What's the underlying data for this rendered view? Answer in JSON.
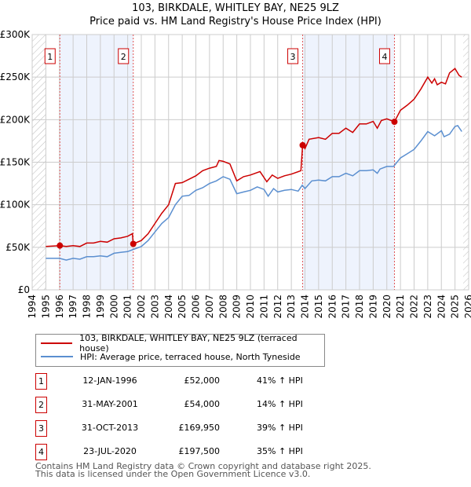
{
  "chart_data": {
    "type": "line",
    "title": "103, BIRKDALE, WHITLEY BAY, NE25 9LZ",
    "subtitle": "Price paid vs. HM Land Registry's House Price Index (HPI)",
    "xlabel": "",
    "ylabel": "",
    "xlim": [
      1994,
      2026
    ],
    "ylim": [
      0,
      300000
    ],
    "x_ticks": [
      "1994",
      "1995",
      "1996",
      "1997",
      "1998",
      "1999",
      "2000",
      "2001",
      "2002",
      "2003",
      "2004",
      "2005",
      "2006",
      "2007",
      "2008",
      "2009",
      "2010",
      "2011",
      "2012",
      "2013",
      "2014",
      "2015",
      "2016",
      "2017",
      "2018",
      "2019",
      "2020",
      "2021",
      "2022",
      "2023",
      "2024",
      "2025",
      "2026"
    ],
    "y_ticks": [
      {
        "v": 0,
        "label": "£0"
      },
      {
        "v": 50000,
        "label": "£50K"
      },
      {
        "v": 100000,
        "label": "£100K"
      },
      {
        "v": 150000,
        "label": "£150K"
      },
      {
        "v": 200000,
        "label": "£200K"
      },
      {
        "v": 250000,
        "label": "£250K"
      },
      {
        "v": 300000,
        "label": "£300K"
      }
    ],
    "grid": true,
    "series": [
      {
        "name": "103, BIRKDALE, WHITLEY BAY, NE25 9LZ (terraced house)",
        "color": "#cc0000",
        "x": [
          1995,
          1996.03,
          1996.5,
          1997,
          1997.5,
          1998,
          1998.5,
          1999,
          1999.5,
          2000,
          2000.5,
          2001,
          2001.35,
          2001.41,
          2002,
          2002.5,
          2003,
          2003.5,
          2004,
          2004.5,
          2005,
          2005.5,
          2006,
          2006.5,
          2007,
          2007.5,
          2007.7,
          2008,
          2008.5,
          2009,
          2009.5,
          2010,
          2010.7,
          2011.2,
          2011.6,
          2012,
          2012.5,
          2013,
          2013.7,
          2013.83,
          2014,
          2014.3,
          2015,
          2015.5,
          2016,
          2016.5,
          2017,
          2017.5,
          2018,
          2018.5,
          2019,
          2019.3,
          2019.6,
          2020,
          2020.56,
          2021,
          2021.5,
          2022,
          2022.5,
          2023,
          2023.3,
          2023.5,
          2023.7,
          2024,
          2024.3,
          2024.6,
          2025,
          2025.3,
          2025.5
        ],
        "y": [
          51000,
          52000,
          51000,
          52000,
          51000,
          55000,
          55000,
          57000,
          56000,
          60000,
          61000,
          63000,
          66000,
          54000,
          58000,
          66000,
          78000,
          90000,
          100000,
          125000,
          126000,
          130000,
          134000,
          140000,
          143000,
          145000,
          152000,
          151000,
          148000,
          128000,
          133000,
          135000,
          139000,
          127000,
          135000,
          131000,
          134000,
          136000,
          140000,
          169950,
          166000,
          177000,
          179000,
          177000,
          184000,
          184000,
          190000,
          185000,
          195000,
          195000,
          198000,
          190000,
          199000,
          201000,
          197500,
          211000,
          217000,
          224000,
          236000,
          250000,
          243000,
          248000,
          241000,
          244000,
          242000,
          255000,
          260000,
          252000,
          250000
        ]
      },
      {
        "name": "HPI: Average price, terraced house, North Tyneside",
        "color": "#5b8fd0",
        "x": [
          1995,
          1996,
          1996.5,
          1997,
          1997.5,
          1998,
          1998.5,
          1999,
          1999.5,
          2000,
          2000.5,
          2001,
          2001.5,
          2002,
          2002.5,
          2003,
          2003.5,
          2004,
          2004.5,
          2005,
          2005.5,
          2006,
          2006.5,
          2007,
          2007.5,
          2008,
          2008.5,
          2009,
          2009.5,
          2010,
          2010.5,
          2011,
          2011.3,
          2011.7,
          2012,
          2012.5,
          2013,
          2013.5,
          2013.8,
          2014,
          2014.5,
          2015,
          2015.5,
          2016,
          2016.5,
          2017,
          2017.5,
          2018,
          2018.5,
          2019,
          2019.3,
          2019.5,
          2020,
          2020.5,
          2021,
          2021.5,
          2022,
          2022.5,
          2023,
          2023.5,
          2024,
          2024.2,
          2024.6,
          2025,
          2025.2,
          2025.5
        ],
        "y": [
          37000,
          37000,
          35000,
          37000,
          36000,
          39000,
          39000,
          40000,
          39000,
          43000,
          44000,
          45000,
          48000,
          51000,
          58000,
          68000,
          78000,
          85000,
          100000,
          110000,
          111000,
          117000,
          120000,
          125000,
          128000,
          133000,
          130000,
          113000,
          115000,
          117000,
          121000,
          118000,
          110000,
          119000,
          115000,
          117000,
          118000,
          116000,
          123000,
          119000,
          128000,
          129000,
          128000,
          133000,
          133000,
          137000,
          134000,
          140000,
          140000,
          141000,
          137000,
          142000,
          145000,
          145000,
          155000,
          160000,
          165000,
          175000,
          186000,
          181000,
          187000,
          180000,
          183000,
          192000,
          193000,
          186000
        ]
      }
    ],
    "sales": [
      {
        "label": "1",
        "x": 1996.03,
        "price": 52000
      },
      {
        "label": "2",
        "x": 2001.41,
        "price": 54000
      },
      {
        "label": "3",
        "x": 2013.83,
        "price": 169950
      },
      {
        "label": "4",
        "x": 2020.56,
        "price": 197500
      }
    ],
    "shaded_ranges": [
      [
        1996.03,
        2001.41
      ],
      [
        2013.83,
        2020.56
      ]
    ],
    "hatched_ranges": [
      [
        1994,
        1995
      ],
      [
        2025.6,
        2026
      ]
    ]
  },
  "legend": {
    "red": "103, BIRKDALE, WHITLEY BAY, NE25 9LZ (terraced house)",
    "blue": "HPI: Average price, terraced house, North Tyneside"
  },
  "table": [
    {
      "num": "1",
      "date": "12-JAN-1996",
      "price": "£52,000",
      "hpi": "41% ↑ HPI"
    },
    {
      "num": "2",
      "date": "31-MAY-2001",
      "price": "£54,000",
      "hpi": "14% ↑ HPI"
    },
    {
      "num": "3",
      "date": "31-OCT-2013",
      "price": "£169,950",
      "hpi": "39% ↑ HPI"
    },
    {
      "num": "4",
      "date": "23-JUL-2020",
      "price": "£197,500",
      "hpi": "35% ↑ HPI"
    }
  ],
  "footer": {
    "line1": "Contains HM Land Registry data © Crown copyright and database right 2025.",
    "line2": "This data is licensed under the Open Government Licence v3.0."
  }
}
